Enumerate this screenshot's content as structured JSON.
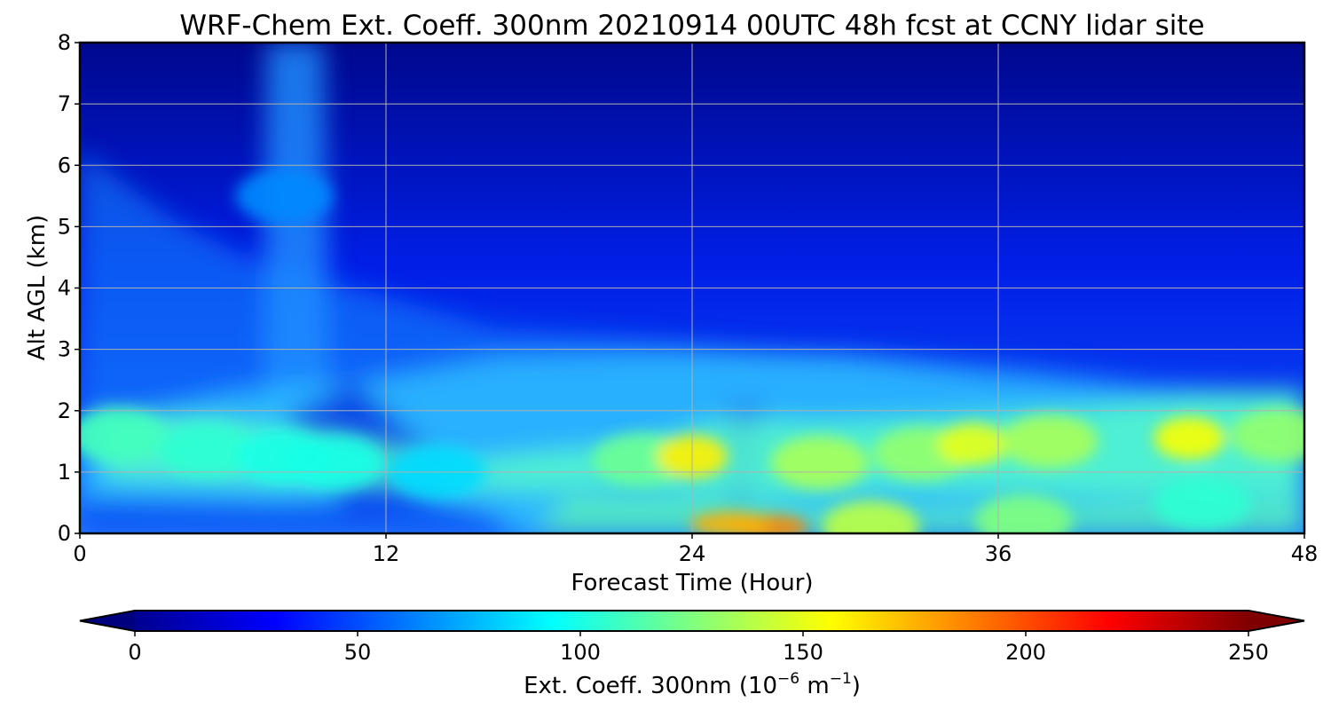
{
  "chart_data": {
    "type": "heatmap",
    "title": "WRF-Chem Ext. Coeff. 300nm  20210914 00UTC 48h fcst at CCNY lidar site",
    "xlabel": "Forecast Time (Hour)",
    "ylabel": "Alt AGL (km)",
    "xlim": [
      0,
      48
    ],
    "ylim": [
      0,
      8
    ],
    "x_ticks": [
      0,
      12,
      24,
      36,
      48
    ],
    "y_ticks": [
      0,
      1,
      2,
      3,
      4,
      5,
      6,
      7,
      8
    ],
    "grid": true,
    "colormap": "jet",
    "colorbar": {
      "label_prefix": "Ext. Coeff. 300nm  (10",
      "label_exp1": "−6",
      "label_mid": " m",
      "label_exp2": "−1",
      "label_suffix": ")",
      "range": [
        0,
        250
      ],
      "ticks": [
        0,
        50,
        100,
        150,
        200,
        250
      ],
      "extend": "both",
      "placement": "bottom"
    },
    "hotspots": [
      {
        "x": 1.5,
        "y": 1.6,
        "value": 110
      },
      {
        "x": 5,
        "y": 1.35,
        "value": 105
      },
      {
        "x": 8,
        "y": 1.25,
        "value": 100
      },
      {
        "x": 10,
        "y": 1.15,
        "value": 100
      },
      {
        "x": 14,
        "y": 1.0,
        "value": 85
      },
      {
        "x": 22,
        "y": 1.2,
        "value": 120
      },
      {
        "x": 24,
        "y": 1.25,
        "value": 160
      },
      {
        "x": 29,
        "y": 1.15,
        "value": 135
      },
      {
        "x": 33,
        "y": 1.3,
        "value": 130
      },
      {
        "x": 35,
        "y": 1.45,
        "value": 150
      },
      {
        "x": 38,
        "y": 1.5,
        "value": 135
      },
      {
        "x": 43.5,
        "y": 1.55,
        "value": 155
      },
      {
        "x": 47,
        "y": 1.6,
        "value": 130
      },
      {
        "x": 27,
        "y": 0.1,
        "value": 185
      },
      {
        "x": 25.5,
        "y": 0.15,
        "value": 175
      },
      {
        "x": 31,
        "y": 0.1,
        "value": 140
      },
      {
        "x": 37,
        "y": 0.2,
        "value": 125
      },
      {
        "x": 44,
        "y": 0.5,
        "value": 105
      },
      {
        "x": 8,
        "y": 5.5,
        "value": 65
      }
    ]
  }
}
